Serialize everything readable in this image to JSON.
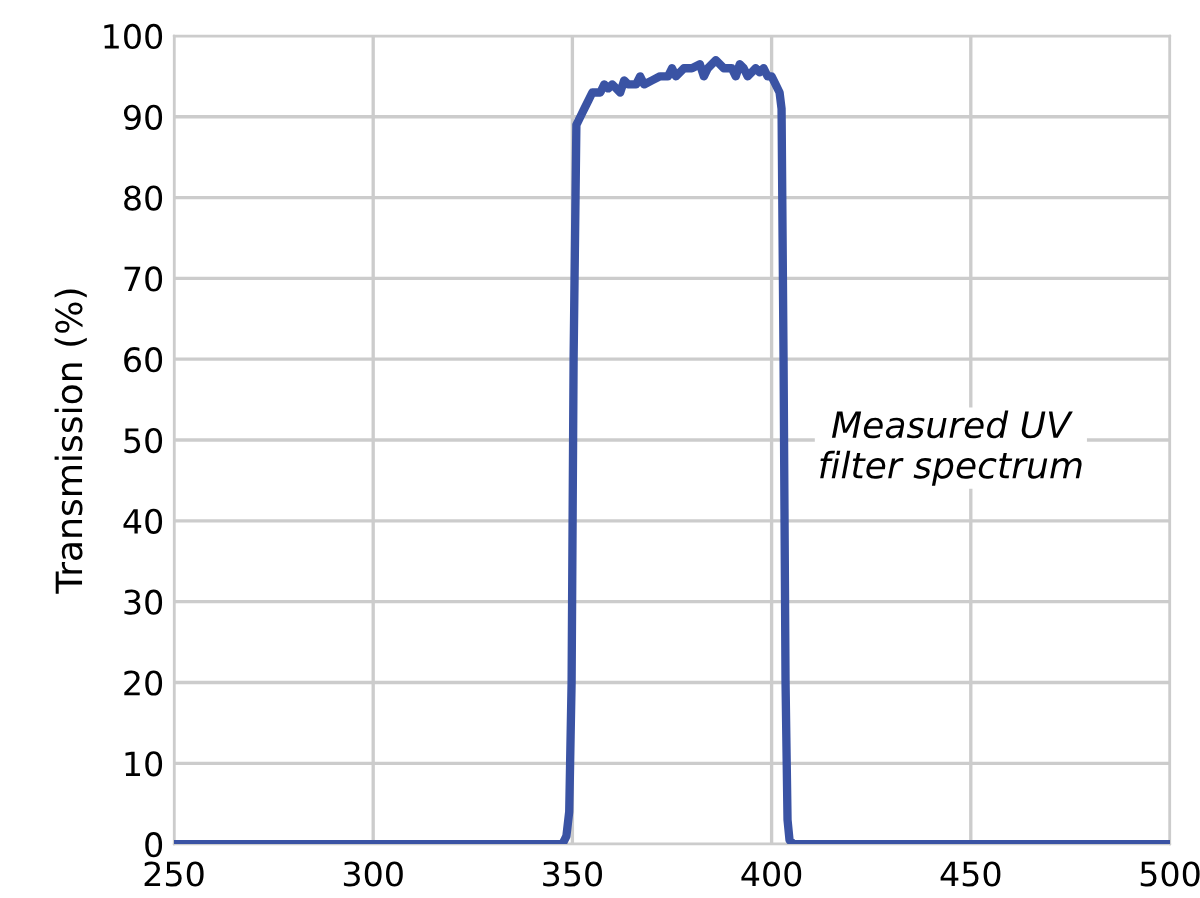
{
  "chart_data": {
    "type": "line",
    "ylabel": "Transmission (%)",
    "x": [
      250,
      300,
      345,
      347.5,
      348.5,
      349.2,
      349.8,
      350.3,
      351,
      352,
      353,
      354,
      355,
      357,
      358,
      359,
      360,
      362,
      363,
      364,
      366,
      367,
      368,
      370,
      372,
      374,
      375,
      376,
      378,
      380,
      382,
      383,
      384,
      386,
      388,
      390,
      391,
      392,
      393,
      394,
      396,
      397,
      398,
      399,
      400,
      401,
      402,
      402.5,
      403,
      403.5,
      404,
      404.5,
      405.5,
      410,
      450,
      500
    ],
    "series": [
      {
        "color": "#3a53a4",
        "values": [
          0,
          0,
          0,
          0,
          1,
          4,
          20,
          60,
          89,
          90,
          91,
          92,
          93,
          93,
          94,
          93.5,
          94,
          93,
          94.5,
          94,
          94,
          95,
          94,
          94.5,
          95,
          95,
          96,
          95,
          96,
          96,
          96.5,
          95,
          96,
          97,
          96,
          96,
          95,
          96.5,
          96,
          95,
          96,
          95.5,
          96,
          95,
          95,
          94,
          93,
          91,
          60,
          20,
          3,
          0.5,
          0,
          0,
          0,
          0
        ]
      }
    ],
    "xlim": [
      250,
      500
    ],
    "ylim": [
      0,
      100
    ],
    "xticks": [
      250,
      300,
      350,
      400,
      450,
      500
    ],
    "yticks": [
      0,
      10,
      20,
      30,
      40,
      50,
      60,
      70,
      80,
      90,
      100
    ],
    "grid": true,
    "marker": "none",
    "line_style": "solid",
    "annotations": [
      "Measured UV\nfilter spectrum"
    ]
  }
}
